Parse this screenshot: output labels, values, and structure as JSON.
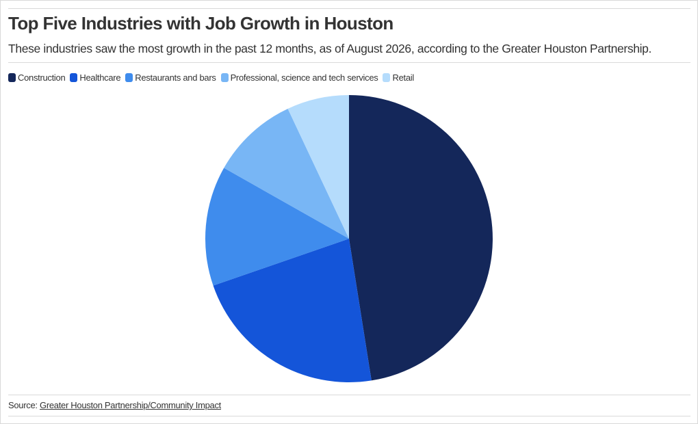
{
  "chart_data": {
    "type": "pie",
    "title": "Top Five Industries with Job Growth in Houston",
    "subtitle": "These industries saw the most growth in the past 12 months, as of August 2026, according to the Greater Houston Partnership.",
    "categories": [
      "Construction",
      "Healthcare",
      "Restaurants and bars",
      "Professional, science and tech services",
      "Retail"
    ],
    "values": [
      47.5,
      22.2,
      13.5,
      9.8,
      7.0
    ],
    "colors": [
      "#14275a",
      "#1455d9",
      "#3f8ced",
      "#78b6f5",
      "#b5dcfc"
    ],
    "legend_position": "top-left"
  },
  "footer": {
    "source_prefix": "Source:",
    "source_link": "Greater Houston Partnership/Community Impact"
  }
}
